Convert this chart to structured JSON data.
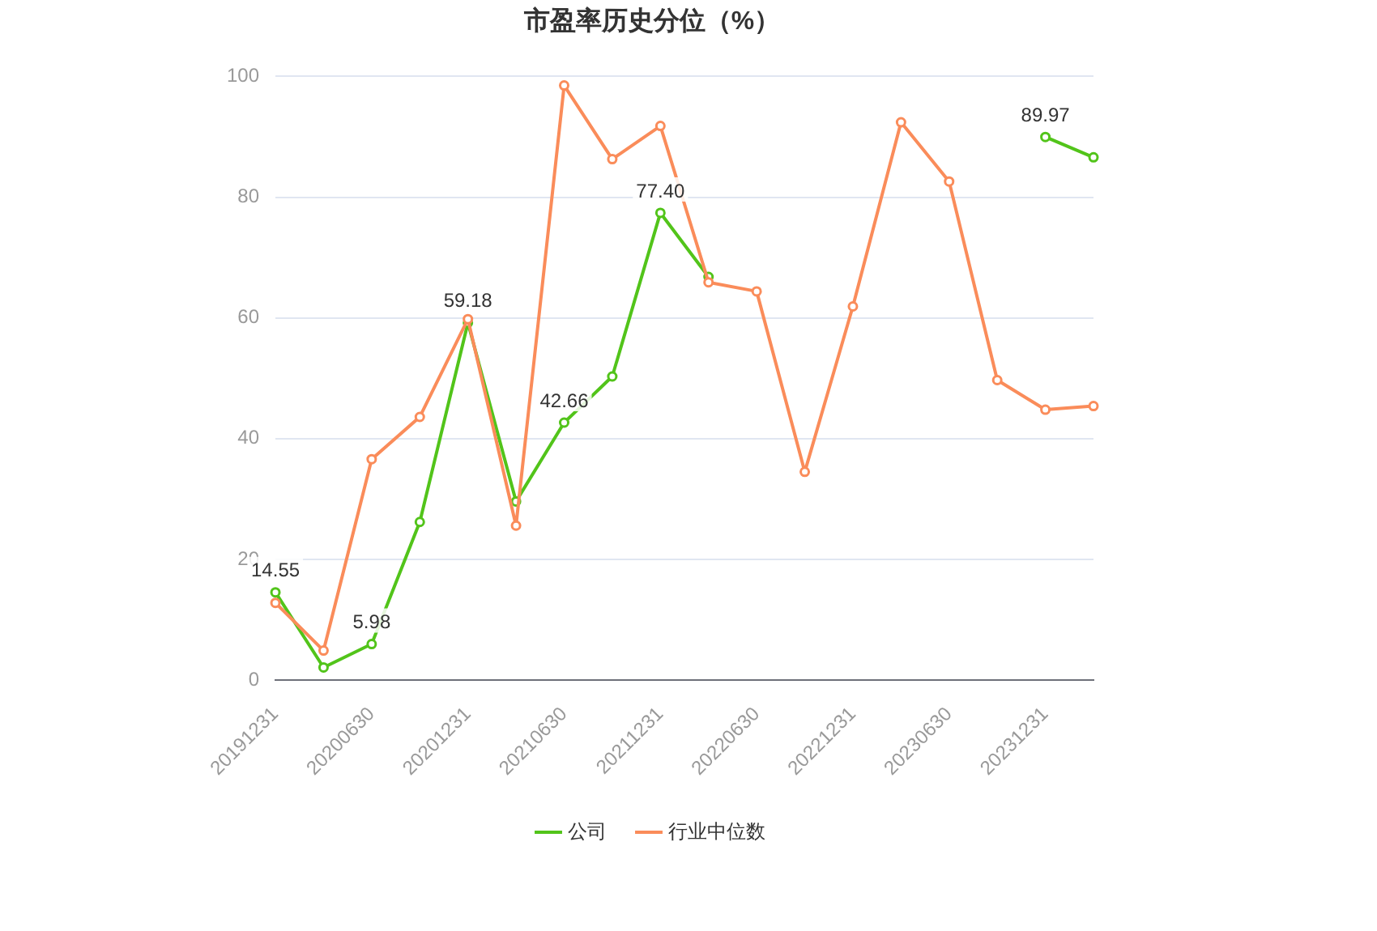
{
  "chart_data": {
    "type": "line",
    "title": "市盈率历史分位（%）",
    "categories": [
      "20191231",
      null,
      "20200630",
      null,
      "20201231",
      null,
      "20210630",
      null,
      "20211231",
      null,
      "20220630",
      null,
      "20221231",
      null,
      "20230630",
      null,
      "20231231",
      null
    ],
    "series": [
      {
        "name": "公司",
        "color": "#52c41a",
        "values": [
          14.55,
          2.1,
          5.98,
          26.2,
          59.18,
          29.6,
          42.66,
          50.3,
          77.4,
          66.8,
          null,
          null,
          null,
          null,
          null,
          null,
          89.97,
          86.6
        ],
        "value_labels": [
          "14.55",
          null,
          "5.98",
          null,
          "59.18",
          null,
          "42.66",
          null,
          "77.40",
          null,
          null,
          null,
          null,
          null,
          null,
          null,
          "89.97",
          null
        ]
      },
      {
        "name": "行业中位数",
        "color": "#fa8c5a",
        "values": [
          12.8,
          4.9,
          36.6,
          43.6,
          59.8,
          25.6,
          98.5,
          86.3,
          91.8,
          65.9,
          64.4,
          34.5,
          61.9,
          92.4,
          82.6,
          49.7,
          44.8,
          45.4
        ]
      }
    ],
    "ylim": [
      0,
      100
    ],
    "yticks": [
      0,
      20,
      40,
      60,
      80,
      100
    ],
    "grid": "y",
    "legend": "bottom",
    "marker": "circle",
    "line_style": "solid"
  }
}
